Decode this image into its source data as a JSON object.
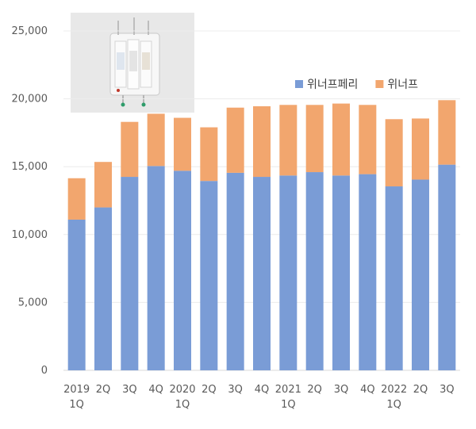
{
  "chart_data": {
    "type": "bar",
    "stacked": true,
    "categories": [
      "2019 1Q",
      "2Q",
      "3Q",
      "4Q",
      "2020 1Q",
      "2Q",
      "3Q",
      "4Q",
      "2021 1Q",
      "2Q",
      "3Q",
      "4Q",
      "2022 1Q",
      "2Q",
      "3Q"
    ],
    "category_lines": [
      [
        "2019",
        "1Q"
      ],
      [
        "2Q"
      ],
      [
        "3Q"
      ],
      [
        "4Q"
      ],
      [
        "2020",
        "1Q"
      ],
      [
        "2Q"
      ],
      [
        "3Q"
      ],
      [
        "4Q"
      ],
      [
        "2021",
        "1Q"
      ],
      [
        "2Q"
      ],
      [
        "3Q"
      ],
      [
        "4Q"
      ],
      [
        "2022",
        "1Q"
      ],
      [
        "2Q"
      ],
      [
        "3Q"
      ]
    ],
    "series": [
      {
        "name": "위너프페리",
        "color": "#7a9cd6",
        "values": [
          11100,
          12000,
          14250,
          15050,
          14700,
          13950,
          14550,
          14250,
          14350,
          14600,
          14350,
          14450,
          13550,
          14050,
          15150
        ]
      },
      {
        "name": "위너프",
        "color": "#f2a66e",
        "values": [
          3050,
          3350,
          4050,
          3850,
          3900,
          3950,
          4800,
          5200,
          5200,
          4950,
          5300,
          5100,
          4950,
          4500,
          4750
        ]
      }
    ],
    "ylim": [
      0,
      25000
    ],
    "yticks": [
      0,
      5000,
      10000,
      15000,
      20000,
      25000
    ],
    "ytick_labels": [
      "0",
      "5,000",
      "10,000",
      "15,000",
      "20,000",
      "25,000"
    ],
    "grid": true,
    "legend_position": "top-right"
  }
}
